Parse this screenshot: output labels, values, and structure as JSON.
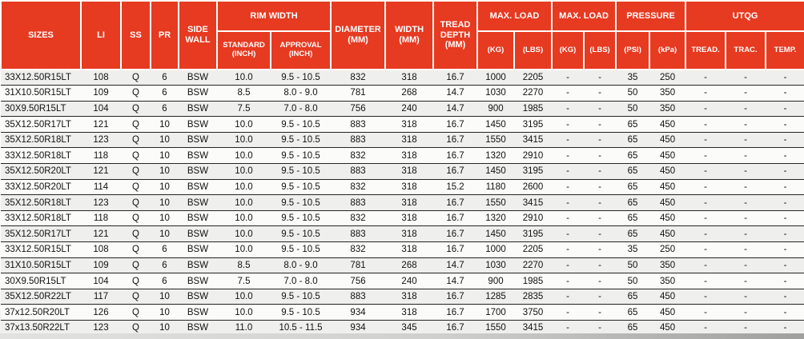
{
  "colors": {
    "header_bg": "#e63a21",
    "header_text": "#ffffff",
    "row_bg": "#fbfbf9",
    "row_alt_bg": "#efefed",
    "row_border": "#242424"
  },
  "table": {
    "header": {
      "sizes": "SIZES",
      "li": "LI",
      "ss": "SS",
      "pr": "PR",
      "side_wall": "SIDE WALL",
      "rim_width": "RIM WIDTH",
      "standard": "STANDARD (INCH)",
      "approval": "APPROVAL (INCH)",
      "diameter": "DIAMETER (MM)",
      "width": "WIDTH (MM)",
      "tread_depth": "TREAD DEPTH (MM)",
      "max_load_1": "MAX. LOAD",
      "kg_1": "(KG)",
      "lbs_1": "(LBS)",
      "max_load_2": "MAX. LOAD",
      "kg_2": "(KG)",
      "lbs_2": "(LBS)",
      "pressure": "PRESSURE",
      "psi": "(PSI)",
      "kpa": "(kPa)",
      "utqg": "UTQG",
      "utqg_tread": "TREAD.",
      "utqg_trac": "TRAC.",
      "utqg_temp": "TEMP."
    },
    "rows": [
      [
        "33X12.50R15LT",
        "108",
        "Q",
        "6",
        "BSW",
        "10.0",
        "9.5 - 10.5",
        "832",
        "318",
        "16.7",
        "1000",
        "2205",
        "-",
        "-",
        "35",
        "250",
        "-",
        "-",
        "-"
      ],
      [
        "31X10.50R15LT",
        "109",
        "Q",
        "6",
        "BSW",
        "8.5",
        "8.0 - 9.0",
        "781",
        "268",
        "14.7",
        "1030",
        "2270",
        "-",
        "-",
        "50",
        "350",
        "-",
        "-",
        "-"
      ],
      [
        "30X9.50R15LT",
        "104",
        "Q",
        "6",
        "BSW",
        "7.5",
        "7.0 - 8.0",
        "756",
        "240",
        "14.7",
        "900",
        "1985",
        "-",
        "-",
        "50",
        "350",
        "-",
        "-",
        "-"
      ],
      [
        "35X12.50R17LT",
        "121",
        "Q",
        "10",
        "BSW",
        "10.0",
        "9.5 - 10.5",
        "883",
        "318",
        "16.7",
        "1450",
        "3195",
        "-",
        "-",
        "65",
        "450",
        "-",
        "-",
        "-"
      ],
      [
        "35X12.50R18LT",
        "123",
        "Q",
        "10",
        "BSW",
        "10.0",
        "9.5 - 10.5",
        "883",
        "318",
        "16.7",
        "1550",
        "3415",
        "-",
        "-",
        "65",
        "450",
        "-",
        "-",
        "-"
      ],
      [
        "33X12.50R18LT",
        "118",
        "Q",
        "10",
        "BSW",
        "10.0",
        "9.5 - 10.5",
        "832",
        "318",
        "16.7",
        "1320",
        "2910",
        "-",
        "-",
        "65",
        "450",
        "-",
        "-",
        "-"
      ],
      [
        "35X12.50R20LT",
        "121",
        "Q",
        "10",
        "BSW",
        "10.0",
        "9.5 - 10.5",
        "883",
        "318",
        "16.7",
        "1450",
        "3195",
        "-",
        "-",
        "65",
        "450",
        "-",
        "-",
        "-"
      ],
      [
        "33X12.50R20LT",
        "114",
        "Q",
        "10",
        "BSW",
        "10.0",
        "9.5 - 10.5",
        "832",
        "318",
        "15.2",
        "1180",
        "2600",
        "-",
        "-",
        "65",
        "450",
        "-",
        "-",
        "-"
      ],
      [
        "35X12.50R18LT",
        "123",
        "Q",
        "10",
        "BSW",
        "10.0",
        "9.5 - 10.5",
        "883",
        "318",
        "16.7",
        "1550",
        "3415",
        "-",
        "-",
        "65",
        "450",
        "-",
        "-",
        "-"
      ],
      [
        "33X12.50R18LT",
        "118",
        "Q",
        "10",
        "BSW",
        "10.0",
        "9.5 - 10.5",
        "832",
        "318",
        "16.7",
        "1320",
        "2910",
        "-",
        "-",
        "65",
        "450",
        "-",
        "-",
        "-"
      ],
      [
        "35X12.50R17LT",
        "121",
        "Q",
        "10",
        "BSW",
        "10.0",
        "9.5 - 10.5",
        "883",
        "318",
        "16.7",
        "1450",
        "3195",
        "-",
        "-",
        "65",
        "450",
        "-",
        "-",
        "-"
      ],
      [
        "33X12.50R15LT",
        "108",
        "Q",
        "6",
        "BSW",
        "10.0",
        "9.5 - 10.5",
        "832",
        "318",
        "16.7",
        "1000",
        "2205",
        "-",
        "-",
        "35",
        "250",
        "-",
        "-",
        "-"
      ],
      [
        "31X10.50R15LT",
        "109",
        "Q",
        "6",
        "BSW",
        "8.5",
        "8.0 - 9.0",
        "781",
        "268",
        "14.7",
        "1030",
        "2270",
        "-",
        "-",
        "50",
        "350",
        "-",
        "-",
        "-"
      ],
      [
        "30X9.50R15LT",
        "104",
        "Q",
        "6",
        "BSW",
        "7.5",
        "7.0 - 8.0",
        "756",
        "240",
        "14.7",
        "900",
        "1985",
        "-",
        "-",
        "50",
        "350",
        "-",
        "-",
        "-"
      ],
      [
        "35X12.50R22LT",
        "117",
        "Q",
        "10",
        "BSW",
        "10.0",
        "9.5 - 10.5",
        "883",
        "318",
        "16.7",
        "1285",
        "2835",
        "-",
        "-",
        "65",
        "450",
        "-",
        "-",
        "-"
      ],
      [
        "37x12.50R20LT",
        "126",
        "Q",
        "10",
        "BSW",
        "10.0",
        "9.5 - 10.5",
        "934",
        "318",
        "16.7",
        "1700",
        "3750",
        "-",
        "-",
        "65",
        "450",
        "-",
        "-",
        "-"
      ],
      [
        "37x13.50R22LT",
        "123",
        "Q",
        "10",
        "BSW",
        "11.0",
        "10.5 - 11.5",
        "934",
        "345",
        "16.7",
        "1550",
        "3415",
        "-",
        "-",
        "65",
        "450",
        "-",
        "-",
        "-"
      ]
    ]
  }
}
